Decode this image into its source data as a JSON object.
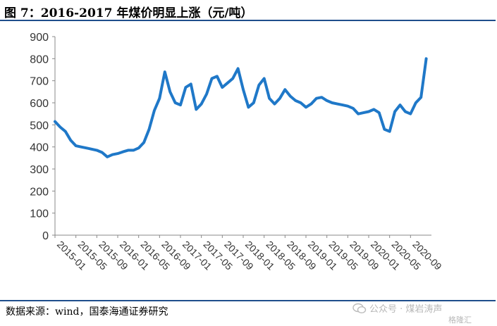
{
  "header": {
    "title": "图 7：2016-2017 年煤价明显上涨（元/吨）"
  },
  "footer": {
    "source": "数据来源：wind，国泰海通证券研究",
    "watermark": "公众号 · 煤岩涛声",
    "watermark_logo": "格隆汇"
  },
  "colors": {
    "line": "#1f78c8",
    "rule": "#1f4e8c",
    "axis": "#888888"
  },
  "chart_data": {
    "type": "line",
    "title": "",
    "xlabel": "",
    "ylabel": "",
    "ylim": [
      0,
      900
    ],
    "yticks": [
      0,
      100,
      200,
      300,
      400,
      500,
      600,
      700,
      800,
      900
    ],
    "xticks": [
      "2015-01",
      "2015-05",
      "2015-09",
      "2016-01",
      "2016-05",
      "2016-09",
      "2017-01",
      "2017-05",
      "2017-09",
      "2018-01",
      "2018-05",
      "2018-09",
      "2019-01",
      "2019-05",
      "2019-09",
      "2020-01",
      "2020-05",
      "2020-09"
    ],
    "x_range": [
      "2015-01",
      "2021-01"
    ],
    "grid": false,
    "legend": "none",
    "series": [
      {
        "x": [
          "2015-01",
          "2015-02",
          "2015-03",
          "2015-04",
          "2015-05",
          "2015-06",
          "2015-07",
          "2015-08",
          "2015-09",
          "2015-10",
          "2015-11",
          "2015-12",
          "2016-01",
          "2016-02",
          "2016-03",
          "2016-04",
          "2016-05",
          "2016-06",
          "2016-07",
          "2016-08",
          "2016-09",
          "2016-10",
          "2016-11",
          "2016-12",
          "2017-01",
          "2017-02",
          "2017-03",
          "2017-04",
          "2017-05",
          "2017-06",
          "2017-07",
          "2017-08",
          "2017-09",
          "2017-10",
          "2017-11",
          "2017-12",
          "2018-01",
          "2018-02",
          "2018-03",
          "2018-04",
          "2018-05",
          "2018-06",
          "2018-07",
          "2018-08",
          "2018-09",
          "2018-10",
          "2018-11",
          "2018-12",
          "2019-01",
          "2019-02",
          "2019-03",
          "2019-04",
          "2019-05",
          "2019-06",
          "2019-07",
          "2019-08",
          "2019-09",
          "2019-10",
          "2019-11",
          "2019-12",
          "2020-01",
          "2020-02",
          "2020-03",
          "2020-04",
          "2020-05",
          "2020-06",
          "2020-07",
          "2020-08",
          "2020-09",
          "2020-10",
          "2020-11",
          "2020-12"
        ],
        "values": [
          515,
          490,
          470,
          430,
          405,
          400,
          395,
          390,
          385,
          375,
          355,
          365,
          370,
          378,
          385,
          385,
          395,
          420,
          480,
          565,
          620,
          740,
          650,
          600,
          590,
          670,
          685,
          570,
          595,
          640,
          710,
          720,
          670,
          690,
          710,
          755,
          660,
          580,
          600,
          680,
          710,
          620,
          595,
          620,
          660,
          630,
          610,
          600,
          580,
          595,
          620,
          625,
          610,
          600,
          595,
          590,
          585,
          575,
          550,
          555,
          560,
          570,
          555,
          480,
          470,
          560,
          590,
          560,
          550,
          600,
          625,
          800
        ]
      }
    ]
  }
}
